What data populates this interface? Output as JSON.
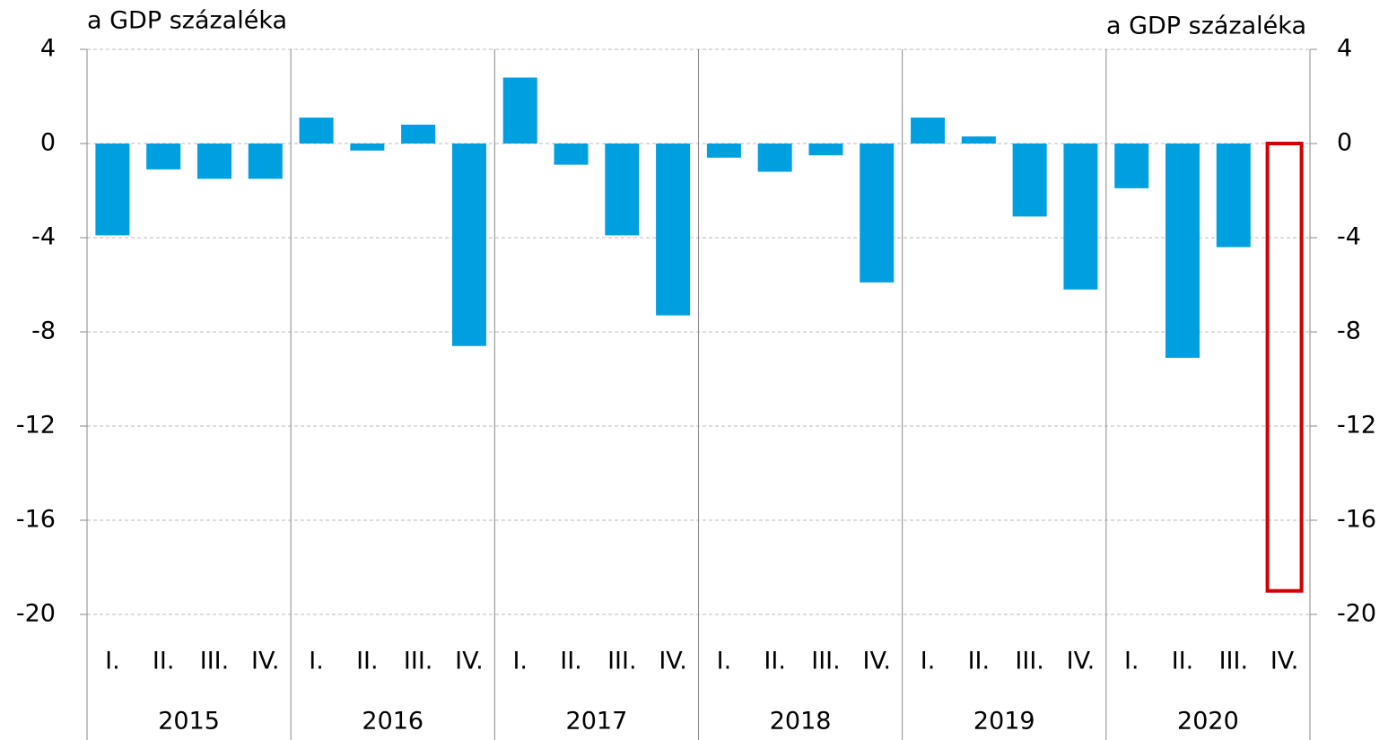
{
  "chart_data": {
    "type": "bar",
    "y_label": "a GDP százaléka",
    "y2_label": "a GDP százaléka",
    "categories": [
      "I.",
      "II.",
      "III.",
      "IV.",
      "I.",
      "II.",
      "III.",
      "IV.",
      "I.",
      "II.",
      "III.",
      "IV.",
      "I.",
      "II.",
      "III.",
      "IV.",
      "I.",
      "II.",
      "III.",
      "IV.",
      "I.",
      "II.",
      "III.",
      "IV."
    ],
    "groups": [
      "2015",
      "2016",
      "2017",
      "2018",
      "2019",
      "2020"
    ],
    "series": [
      {
        "color": "#009fe0",
        "values": [
          -3.9,
          -1.1,
          -1.5,
          -1.5,
          1.1,
          -0.3,
          0.8,
          -8.6,
          2.8,
          -0.9,
          -3.9,
          -7.3,
          -0.6,
          -1.2,
          -0.5,
          -5.9,
          1.1,
          0.3,
          -3.1,
          -6.2,
          -1.9,
          -9.1,
          -4.4,
          null
        ]
      },
      {
        "color": "#d40000",
        "outline": true,
        "values": [
          null,
          null,
          null,
          null,
          null,
          null,
          null,
          null,
          null,
          null,
          null,
          null,
          null,
          null,
          null,
          null,
          null,
          null,
          null,
          null,
          null,
          null,
          null,
          -19.0
        ]
      }
    ],
    "ylim": [
      -20,
      4
    ],
    "yticks": [
      4,
      0,
      -4,
      -8,
      -12,
      -16,
      -20
    ],
    "y2lim": [
      -20,
      4
    ],
    "y2ticks": [
      4,
      0,
      -4,
      -8,
      -12,
      -16,
      -20
    ],
    "grid": true
  }
}
